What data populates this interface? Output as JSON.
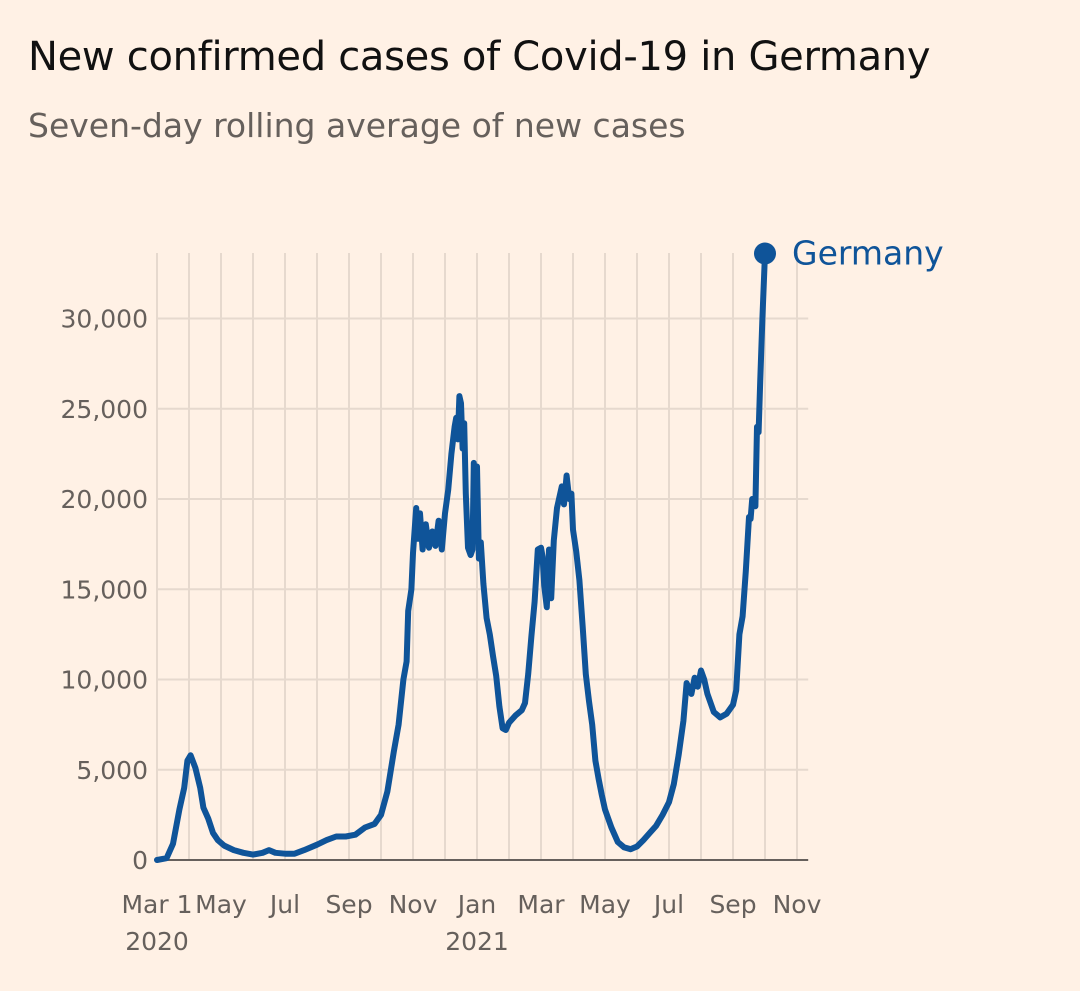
{
  "title": "New confirmed cases of Covid-19 in Germany",
  "subtitle": "Seven-day rolling average of new cases",
  "chart_data": {
    "type": "line",
    "title": "New confirmed cases of Covid-19 in Germany",
    "subtitle": "Seven-day rolling average of new cases",
    "xlabel": "",
    "ylabel": "",
    "ylim": [
      0,
      33500
    ],
    "y_ticks": [
      {
        "value": 0,
        "label": "0"
      },
      {
        "value": 5000,
        "label": "5,000"
      },
      {
        "value": 10000,
        "label": "10,000"
      },
      {
        "value": 15000,
        "label": "15,000"
      },
      {
        "value": 20000,
        "label": "20,000"
      },
      {
        "value": 25000,
        "label": "25,000"
      },
      {
        "value": 30000,
        "label": "30,000"
      }
    ],
    "x_range_months": [
      0,
      20.35
    ],
    "x_ticks": [
      {
        "month": 0,
        "label": "Mar 1",
        "sublabel": "2020"
      },
      {
        "month": 2,
        "label": "May",
        "sublabel": ""
      },
      {
        "month": 4,
        "label": "Jul",
        "sublabel": ""
      },
      {
        "month": 6,
        "label": "Sep",
        "sublabel": ""
      },
      {
        "month": 8,
        "label": "Nov",
        "sublabel": ""
      },
      {
        "month": 10,
        "label": "Jan",
        "sublabel": "2021"
      },
      {
        "month": 12,
        "label": "Mar",
        "sublabel": ""
      },
      {
        "month": 14,
        "label": "May",
        "sublabel": ""
      },
      {
        "month": 16,
        "label": "Jul",
        "sublabel": ""
      },
      {
        "month": 18,
        "label": "Sep",
        "sublabel": ""
      },
      {
        "month": 20,
        "label": "Nov",
        "sublabel": ""
      }
    ],
    "grid": true,
    "legend": "end-of-line label",
    "series": [
      {
        "name": "Germany",
        "color": "#0F5499",
        "points": [
          [
            0.0,
            0
          ],
          [
            0.3,
            100
          ],
          [
            0.5,
            900
          ],
          [
            0.7,
            2800
          ],
          [
            0.85,
            4000
          ],
          [
            0.95,
            5500
          ],
          [
            1.05,
            5800
          ],
          [
            1.2,
            5100
          ],
          [
            1.35,
            4000
          ],
          [
            1.45,
            2900
          ],
          [
            1.6,
            2300
          ],
          [
            1.75,
            1500
          ],
          [
            1.9,
            1100
          ],
          [
            2.1,
            800
          ],
          [
            2.4,
            550
          ],
          [
            2.7,
            400
          ],
          [
            3.0,
            300
          ],
          [
            3.3,
            400
          ],
          [
            3.5,
            550
          ],
          [
            3.7,
            400
          ],
          [
            4.0,
            350
          ],
          [
            4.3,
            350
          ],
          [
            4.6,
            550
          ],
          [
            5.0,
            850
          ],
          [
            5.3,
            1100
          ],
          [
            5.6,
            1300
          ],
          [
            5.9,
            1300
          ],
          [
            6.2,
            1400
          ],
          [
            6.5,
            1800
          ],
          [
            6.8,
            2000
          ],
          [
            7.0,
            2500
          ],
          [
            7.2,
            3800
          ],
          [
            7.4,
            6000
          ],
          [
            7.55,
            7500
          ],
          [
            7.7,
            10000
          ],
          [
            7.8,
            11000
          ],
          [
            7.85,
            13800
          ],
          [
            7.95,
            15000
          ],
          [
            8.0,
            17000
          ],
          [
            8.1,
            19500
          ],
          [
            8.15,
            17800
          ],
          [
            8.22,
            19200
          ],
          [
            8.3,
            17200
          ],
          [
            8.4,
            18600
          ],
          [
            8.5,
            17300
          ],
          [
            8.6,
            18200
          ],
          [
            8.7,
            17400
          ],
          [
            8.8,
            18800
          ],
          [
            8.9,
            17200
          ],
          [
            9.0,
            19200
          ],
          [
            9.1,
            20500
          ],
          [
            9.2,
            22500
          ],
          [
            9.3,
            24000
          ],
          [
            9.35,
            24500
          ],
          [
            9.4,
            23300
          ],
          [
            9.45,
            25700
          ],
          [
            9.5,
            25300
          ],
          [
            9.55,
            22800
          ],
          [
            9.6,
            24200
          ],
          [
            9.65,
            20300
          ],
          [
            9.72,
            17300
          ],
          [
            9.8,
            16900
          ],
          [
            9.86,
            17200
          ],
          [
            9.9,
            22000
          ],
          [
            9.96,
            18300
          ],
          [
            10.0,
            21800
          ],
          [
            10.06,
            16700
          ],
          [
            10.12,
            17600
          ],
          [
            10.2,
            15300
          ],
          [
            10.3,
            13400
          ],
          [
            10.4,
            12500
          ],
          [
            10.5,
            11300
          ],
          [
            10.6,
            10200
          ],
          [
            10.7,
            8500
          ],
          [
            10.8,
            7300
          ],
          [
            10.9,
            7200
          ],
          [
            11.0,
            7600
          ],
          [
            11.2,
            8000
          ],
          [
            11.4,
            8300
          ],
          [
            11.5,
            8700
          ],
          [
            11.6,
            10300
          ],
          [
            11.7,
            12400
          ],
          [
            11.8,
            14300
          ],
          [
            11.9,
            17200
          ],
          [
            12.0,
            17300
          ],
          [
            12.05,
            16800
          ],
          [
            12.1,
            15200
          ],
          [
            12.18,
            14000
          ],
          [
            12.25,
            17200
          ],
          [
            12.32,
            14500
          ],
          [
            12.4,
            17700
          ],
          [
            12.5,
            19500
          ],
          [
            12.6,
            20300
          ],
          [
            12.65,
            20700
          ],
          [
            12.72,
            19700
          ],
          [
            12.8,
            21300
          ],
          [
            12.88,
            20000
          ],
          [
            12.95,
            20300
          ],
          [
            13.0,
            18300
          ],
          [
            13.1,
            17100
          ],
          [
            13.2,
            15500
          ],
          [
            13.3,
            13000
          ],
          [
            13.4,
            10300
          ],
          [
            13.5,
            8800
          ],
          [
            13.6,
            7500
          ],
          [
            13.7,
            5500
          ],
          [
            13.8,
            4500
          ],
          [
            13.9,
            3600
          ],
          [
            14.0,
            2800
          ],
          [
            14.2,
            1800
          ],
          [
            14.4,
            1000
          ],
          [
            14.6,
            700
          ],
          [
            14.8,
            600
          ],
          [
            15.0,
            750
          ],
          [
            15.2,
            1100
          ],
          [
            15.4,
            1500
          ],
          [
            15.6,
            1900
          ],
          [
            15.8,
            2500
          ],
          [
            16.0,
            3200
          ],
          [
            16.15,
            4200
          ],
          [
            16.3,
            5800
          ],
          [
            16.45,
            7700
          ],
          [
            16.55,
            9800
          ],
          [
            16.7,
            9200
          ],
          [
            16.8,
            10100
          ],
          [
            16.9,
            9600
          ],
          [
            17.0,
            10500
          ],
          [
            17.1,
            10000
          ],
          [
            17.2,
            9200
          ],
          [
            17.4,
            8200
          ],
          [
            17.6,
            7900
          ],
          [
            17.8,
            8100
          ],
          [
            18.0,
            8600
          ],
          [
            18.1,
            9400
          ],
          [
            18.2,
            12500
          ],
          [
            18.3,
            13500
          ],
          [
            18.4,
            16000
          ],
          [
            18.5,
            19000
          ],
          [
            18.55,
            18900
          ],
          [
            18.6,
            20000
          ],
          [
            18.7,
            19600
          ],
          [
            18.75,
            24000
          ],
          [
            18.8,
            23700
          ],
          [
            18.85,
            26500
          ],
          [
            18.92,
            30000
          ],
          [
            19.0,
            33600
          ]
        ]
      }
    ]
  }
}
